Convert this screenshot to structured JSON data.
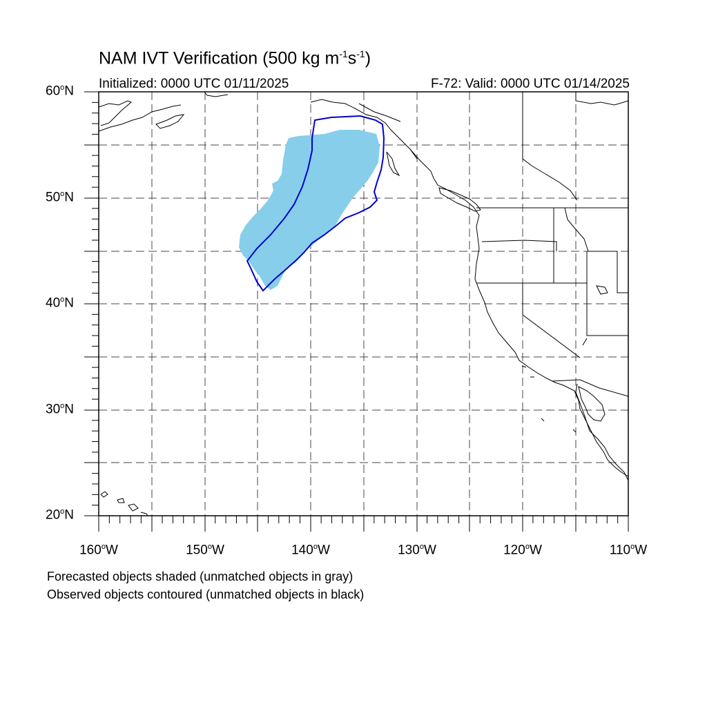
{
  "title": {
    "text": "NAM IVT Verification (500 kg m",
    "sup1": "-1",
    "mid": "s",
    "sup2": "-1",
    "end": ")"
  },
  "initialized": "Initialized: 0000 UTC 01/11/2025",
  "valid": "F-72: Valid: 0000 UTC 01/14/2025",
  "lat_labels": [
    {
      "value": "60",
      "deg": "o",
      "hem": "N"
    },
    {
      "value": "50",
      "deg": "o",
      "hem": "N"
    },
    {
      "value": "40",
      "deg": "o",
      "hem": "N"
    },
    {
      "value": "30",
      "deg": "o",
      "hem": "N"
    },
    {
      "value": "20",
      "deg": "o",
      "hem": "N"
    }
  ],
  "lon_labels": [
    {
      "value": "160",
      "deg": "o",
      "hem": "W"
    },
    {
      "value": "150",
      "deg": "o",
      "hem": "W"
    },
    {
      "value": "140",
      "deg": "o",
      "hem": "W"
    },
    {
      "value": "130",
      "deg": "o",
      "hem": "W"
    },
    {
      "value": "120",
      "deg": "o",
      "hem": "W"
    },
    {
      "value": "110",
      "deg": "o",
      "hem": "W"
    }
  ],
  "notes": [
    "Forecasted objects shaded (unmatched objects in gray)",
    "Observed objects contoured (unmatched objects in black)"
  ],
  "map": {
    "extent": {
      "lon_min": -160,
      "lon_max": -110,
      "lat_min": 20,
      "lat_max": 60
    },
    "gridlines": {
      "lat_step": 5,
      "lon_step": 5,
      "style": "dashed"
    },
    "forecast_fill_color": "#87ceeb",
    "observed_contour_color": "#0000cd",
    "coastline_color": "#000000"
  }
}
